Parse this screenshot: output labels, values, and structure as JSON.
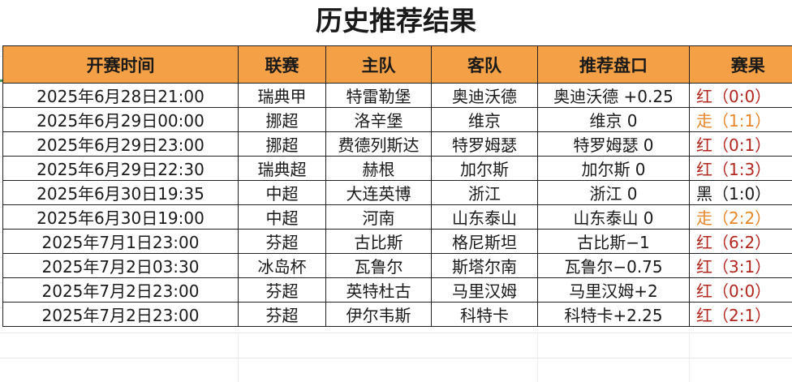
{
  "title": "历史推荐结果",
  "colors": {
    "header_bg": "#f4a046",
    "red": "#b3261e",
    "orange": "#e8862a",
    "black": "#1a1a1a"
  },
  "columns": [
    "开赛时间",
    "联赛",
    "主队",
    "客队",
    "推荐盘口",
    "赛果"
  ],
  "rows": [
    {
      "time": "2025年6月28日21:00",
      "league": "瑞典甲",
      "home": "特雷勒堡",
      "away": "奥迪沃德",
      "pick": "奥迪沃德 +0.25",
      "result": "红（0:0）",
      "status": "red"
    },
    {
      "time": "2025年6月29日00:00",
      "league": "挪超",
      "home": "洛辛堡",
      "away": "维京",
      "pick": "维京 0",
      "result": "走（1:1）",
      "status": "orange"
    },
    {
      "time": "2025年6月29日23:00",
      "league": "挪超",
      "home": "费德列斯达",
      "away": "特罗姆瑟",
      "pick": "特罗姆瑟 0",
      "result": "红（0:1）",
      "status": "red"
    },
    {
      "time": "2025年6月29日22:30",
      "league": "瑞典超",
      "home": "赫根",
      "away": "加尔斯",
      "pick": "加尔斯 0",
      "result": "红（1:3）",
      "status": "red"
    },
    {
      "time": "2025年6月30日19:35",
      "league": "中超",
      "home": "大连英博",
      "away": "浙江",
      "pick": "浙江 0",
      "result": "黑（1:0）",
      "status": "black"
    },
    {
      "time": "2025年6月30日19:00",
      "league": "中超",
      "home": "河南",
      "away": "山东泰山",
      "pick": "山东泰山 0",
      "result": "走（2:2）",
      "status": "orange"
    },
    {
      "time": "2025年7月1日23:00",
      "league": "芬超",
      "home": "古比斯",
      "away": "格尼斯坦",
      "pick": "古比斯−1",
      "result": "红（6:2）",
      "status": "red"
    },
    {
      "time": "2025年7月2日03:30",
      "league": "冰岛杯",
      "home": "瓦鲁尔",
      "away": "斯塔尔南",
      "pick": "瓦鲁尔−0.75",
      "result": "红（3:1）",
      "status": "red"
    },
    {
      "time": "2025年7月2日23:00",
      "league": "芬超",
      "home": "英特杜古",
      "away": "马里汉姆",
      "pick": "马里汉姆+2",
      "result": "红（0:0）",
      "status": "red"
    },
    {
      "time": "2025年7月2日23:00",
      "league": "芬超",
      "home": "伊尔韦斯",
      "away": "科特卡",
      "pick": "科特卡+2.25",
      "result": "红（2:1）",
      "status": "red"
    }
  ]
}
